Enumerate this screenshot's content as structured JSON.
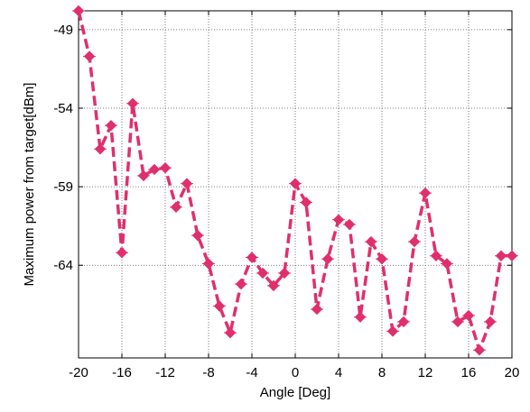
{
  "chart_data": {
    "type": "line",
    "title": "",
    "xlabel": "Angle [Deg]",
    "ylabel": "Maximum power from target[dBm]",
    "xlim": [
      -20,
      20
    ],
    "ylim": [
      -69.9,
      -47.8
    ],
    "x_ticks": [
      -20,
      -16,
      -12,
      -8,
      -4,
      0,
      4,
      8,
      12,
      16,
      20
    ],
    "x_tick_labels": [
      "-20",
      "-16",
      "-12",
      "-8",
      "-4",
      "0",
      "4",
      "8",
      "12",
      "16",
      "20"
    ],
    "y_ticks": [
      -49,
      -54,
      -59,
      -64
    ],
    "y_tick_labels": [
      "-49",
      "-54",
      "-59",
      "-64"
    ],
    "grid": true,
    "line_color": "#e0306a",
    "line_style": "dashed",
    "marker": "diamond",
    "series": [
      {
        "name": "",
        "x": [
          -20,
          -19,
          -18,
          -17,
          -16,
          -15,
          -14,
          -13,
          -12,
          -11,
          -10,
          -9,
          -8,
          -7,
          -6,
          -5,
          -4,
          -3,
          -2,
          -1,
          0,
          1,
          2,
          3,
          4,
          5,
          6,
          7,
          8,
          9,
          10,
          11,
          12,
          13,
          14,
          15,
          16,
          17,
          18,
          19,
          20
        ],
        "y": [
          -47.8,
          -50.7,
          -56.6,
          -55.1,
          -63.2,
          -53.7,
          -58.3,
          -57.9,
          -57.8,
          -60.3,
          -58.8,
          -62.1,
          -63.9,
          -66.6,
          -68.3,
          -65.2,
          -63.5,
          -64.5,
          -65.3,
          -64.5,
          -58.8,
          -60.0,
          -66.8,
          -63.6,
          -61.1,
          -61.4,
          -67.3,
          -62.5,
          -63.6,
          -68.2,
          -67.6,
          -62.5,
          -59.4,
          -63.4,
          -63.9,
          -67.6,
          -67.2,
          -69.4,
          -67.6,
          -63.4,
          -63.4
        ]
      }
    ]
  }
}
